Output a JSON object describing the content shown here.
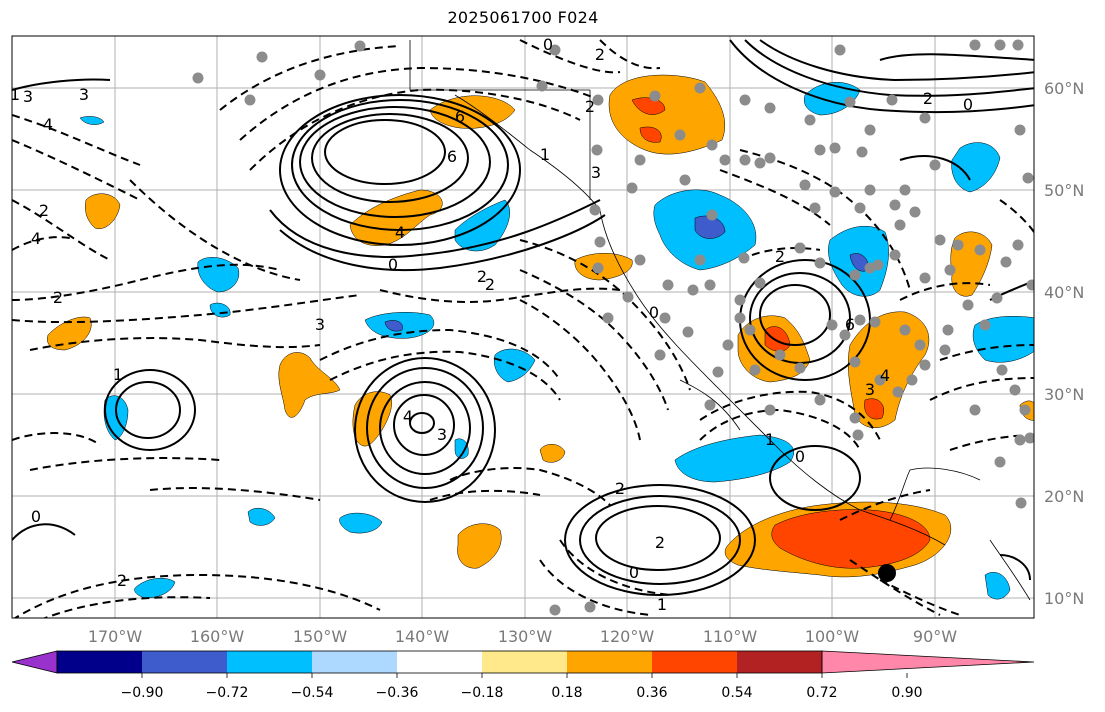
{
  "title": "2025061700 F024",
  "map": {
    "lon_ticks": [
      "170°W",
      "160°W",
      "150°W",
      "140°W",
      "130°W",
      "120°W",
      "110°W",
      "100°W",
      "90°W"
    ],
    "lat_ticks": [
      "60°N",
      "50°N",
      "40°N",
      "30°N",
      "20°N",
      "10°N"
    ],
    "contour_labels": [
      "6",
      "4",
      "0",
      "2",
      "3",
      "1",
      "3",
      "4",
      "6",
      "2",
      "0",
      "1",
      "2",
      "3",
      "4",
      "2",
      "0",
      "2",
      "6",
      "4",
      "3",
      "0",
      "1",
      "2",
      "0",
      "2",
      "1",
      "2",
      "0",
      "2",
      "1",
      "3",
      "3",
      "2",
      "4",
      "2",
      "0"
    ],
    "colors": {
      "background": "#ffffff",
      "grid": "#b0b0b0",
      "station_dot": "#8c8c8c",
      "contour": "#000000"
    }
  },
  "colorbar": {
    "tick_labels": [
      "−0.90",
      "−0.72",
      "−0.54",
      "−0.36",
      "−0.18",
      "0.18",
      "0.36",
      "0.54",
      "0.72",
      "0.90"
    ],
    "colors": [
      "#9932cc",
      "#00008b",
      "#3e5ccc",
      "#00bfff",
      "#add8ff",
      "#ffffff",
      "#ffe98a",
      "#ffa500",
      "#ff4500",
      "#b22222",
      "#ff88aa"
    ]
  }
}
